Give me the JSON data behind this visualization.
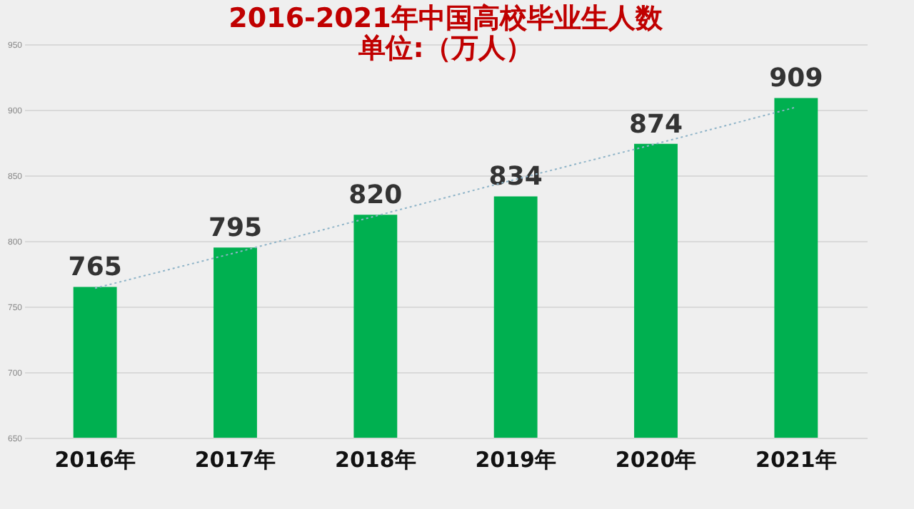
{
  "chart_data": {
    "type": "bar",
    "title": "2016-2021年中国高校毕业生人数",
    "subtitle": "单位:（万人）",
    "categories": [
      "2016年",
      "2017年",
      "2018年",
      "2019年",
      "2020年",
      "2021年"
    ],
    "series": [
      {
        "color": "#00b050",
        "values": [
          765,
          795,
          820,
          834,
          874,
          909
        ],
        "value_labels": [
          "765",
          "795",
          "820",
          "834",
          "874",
          "909"
        ]
      },
      {
        "type": "line",
        "color": "#8fb4c8",
        "line_style": "dotted",
        "values": [
          764,
          791,
          819,
          847,
          874,
          902
        ]
      }
    ],
    "ylim": [
      650,
      950
    ],
    "yticks": [
      650,
      700,
      750,
      800,
      850,
      900,
      950
    ],
    "grid": "y"
  }
}
